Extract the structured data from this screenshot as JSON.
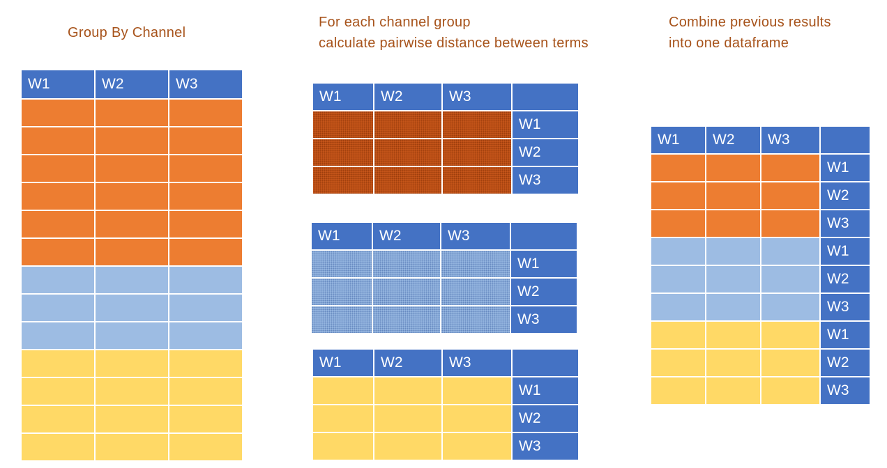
{
  "captions": {
    "group": "Group By Channel",
    "pairwise_line1": "For each channel group",
    "pairwise_line2": "calculate pairwise distance between terms",
    "combine_line1": "Combine previous results",
    "combine_line2": "into one dataframe"
  },
  "columns": [
    "W1",
    "W2",
    "W3"
  ],
  "row_labels": [
    "W1",
    "W2",
    "W3"
  ],
  "colors": {
    "header_blue": "#4472C4",
    "orange": "#ED7D31",
    "light_blue": "#9DBCE3",
    "yellow": "#FFD966",
    "caption_text": "#A7531B"
  },
  "groups": [
    "orange",
    "light-blue",
    "yellow"
  ],
  "left_table_rows": {
    "orange": 6,
    "light-blue": 3,
    "yellow": 4
  }
}
